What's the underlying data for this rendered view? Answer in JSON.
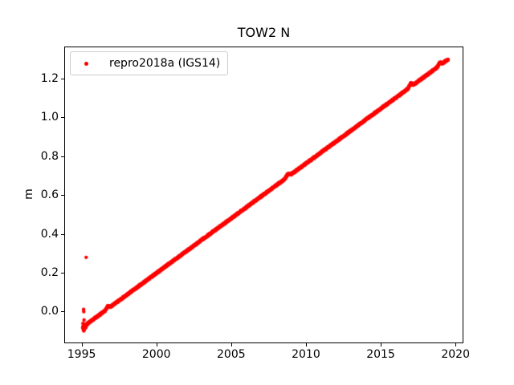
{
  "figure": {
    "kind": "matplotlib-style time series plot",
    "background_color": "#ffffff",
    "spine_color": "#000000",
    "legend_edge_color": "#cccccc"
  },
  "chart_data": {
    "type": "scatter",
    "title": "TOW2 N",
    "xlabel": "",
    "ylabel": "m",
    "xlim": [
      1993.84,
      2020.42
    ],
    "ylim": [
      -0.156,
      1.366
    ],
    "xticks": [
      1995,
      2000,
      2005,
      2010,
      2015,
      2020
    ],
    "yticks": [
      0.0,
      0.2,
      0.4,
      0.6,
      0.8,
      1.0,
      1.2
    ],
    "grid": false,
    "legend_position": "upper-left",
    "series": [
      {
        "name": "repro2018a (IGS14)",
        "color": "#ff0000",
        "marker": "dot",
        "marker_diameter_px": 4.4,
        "description": "dense daily positions forming a near-linear trend",
        "trend": {
          "x_start": 1995.02,
          "y_start": -0.077,
          "x_end": 2019.45,
          "y_end": 1.304,
          "slope_m_per_yr": 0.0565
        },
        "sample_step_yr": 0.01,
        "jitter_m": 0.004,
        "bumps": [
          {
            "x": 1996.7,
            "dy": 0.013,
            "width_yr": 0.12
          },
          {
            "x": 2008.75,
            "dy": 0.013,
            "width_yr": 0.15
          },
          {
            "x": 2016.95,
            "dy": 0.016,
            "width_yr": 0.12
          },
          {
            "x": 2018.9,
            "dy": 0.013,
            "width_yr": 0.12
          }
        ],
        "outliers": [
          [
            1995.25,
            0.283
          ],
          [
            1995.08,
            0.015
          ],
          [
            1995.09,
            0.003
          ],
          [
            1995.11,
            -0.04
          ],
          [
            1995.04,
            -0.058
          ],
          [
            1995.06,
            -0.075
          ],
          [
            1995.07,
            -0.093
          ],
          [
            1995.1,
            -0.096
          ],
          [
            1995.14,
            -0.088
          ],
          [
            1995.18,
            -0.065
          ],
          [
            1995.23,
            -0.08
          ],
          [
            1995.3,
            -0.068
          ]
        ]
      }
    ]
  }
}
